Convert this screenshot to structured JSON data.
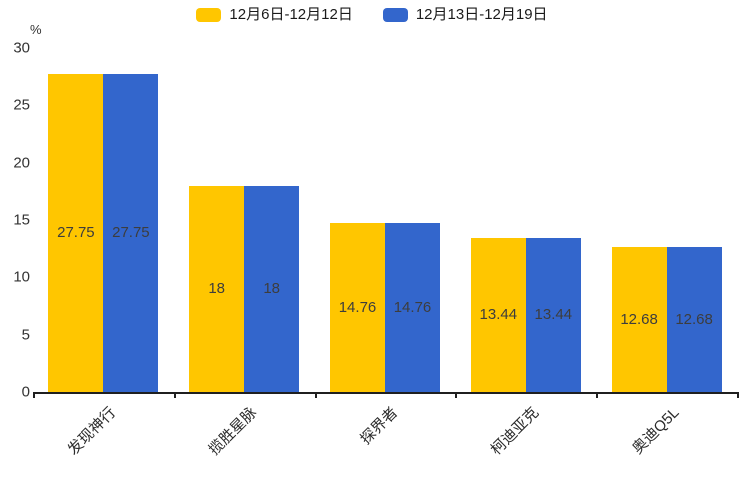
{
  "chart_data": {
    "type": "bar",
    "title": "",
    "categories": [
      "发现神行",
      "揽胜星脉",
      "探界者",
      "柯迪亚克",
      "奥迪Q5L"
    ],
    "series": [
      {
        "name": "12月6日-12月12日",
        "color": "#FFC600",
        "values": [
          27.75,
          18,
          14.76,
          13.44,
          12.68
        ]
      },
      {
        "name": "12月13日-12月19日",
        "color": "#3366CC",
        "values": [
          27.75,
          18,
          14.76,
          13.44,
          12.68
        ]
      }
    ],
    "value_labels": [
      "27.75",
      "18",
      "14.76",
      "13.44",
      "12.68"
    ],
    "y_unit": "%",
    "ylim": [
      0,
      30
    ],
    "yticks": [
      0,
      5,
      10,
      15,
      20,
      25,
      30
    ],
    "grid": false,
    "legend_position": "top-center",
    "value_label_position": "inside-middle",
    "x_label_rotation": -45
  },
  "style": {
    "background": "#ffffff",
    "axis_color": "#1f1f1f",
    "tick_label_color": "#333333",
    "value_label_color": "#3d3d3d"
  }
}
